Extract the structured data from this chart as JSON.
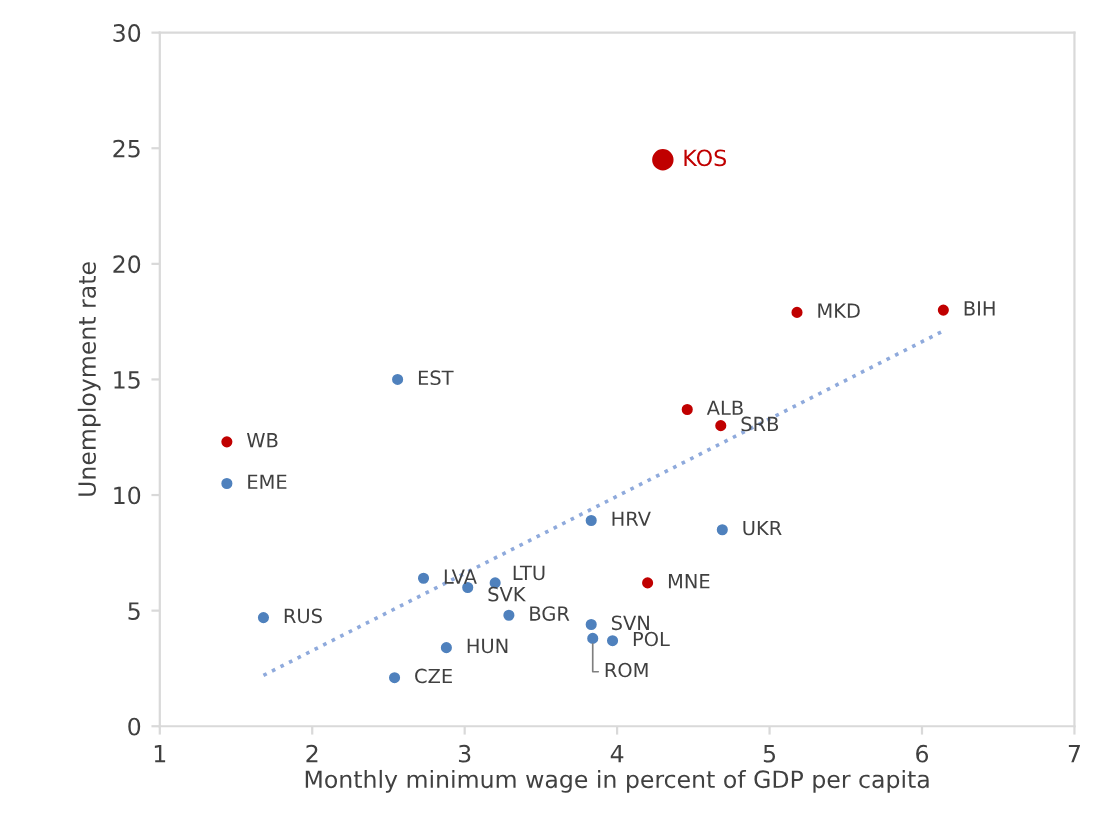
{
  "chart_data": {
    "type": "scatter",
    "xlabel": "Monthly minimum wage in percent of GDP per capita",
    "ylabel": "Unemployment rate",
    "xlim": [
      1,
      7
    ],
    "ylim": [
      0,
      30
    ],
    "xticks": [
      1,
      2,
      3,
      4,
      5,
      6,
      7
    ],
    "yticks": [
      0,
      5,
      10,
      15,
      20,
      25,
      30
    ],
    "grid": false,
    "legend": false,
    "marker": "circle",
    "series": [
      {
        "color": "#4f81bd",
        "x": [
          2.56,
          1.44,
          3.83,
          4.69,
          2.73,
          3.02,
          3.2,
          3.29,
          3.83,
          3.84,
          3.97,
          2.88,
          2.54,
          1.68
        ],
        "values": [
          15.0,
          10.5,
          8.9,
          8.5,
          6.4,
          6.0,
          6.2,
          4.8,
          4.4,
          3.8,
          3.7,
          3.4,
          2.1,
          4.7
        ]
      },
      {
        "color": "#c00000",
        "x": [
          1.44,
          5.18,
          6.14,
          4.46,
          4.68,
          4.2
        ],
        "values": [
          12.3,
          17.9,
          18.0,
          13.7,
          13.0,
          6.2
        ]
      },
      {
        "color": "#c00000",
        "x": [
          4.3
        ],
        "values": [
          24.5
        ]
      },
      {
        "type": "line",
        "color": "#8faadc",
        "line_style": "dotted",
        "marker": "none",
        "x": [
          1.68,
          6.14
        ],
        "values": [
          2.2,
          17.1
        ]
      }
    ],
    "annotations": [
      {
        "text": "EST",
        "x": 2.56,
        "y": 15.0
      },
      {
        "text": "EME",
        "x": 1.44,
        "y": 10.5
      },
      {
        "text": "HRV",
        "x": 3.83,
        "y": 8.9
      },
      {
        "text": "UKR",
        "x": 4.69,
        "y": 8.5
      },
      {
        "text": "LVA",
        "x": 2.73,
        "y": 6.4
      },
      {
        "text": "SVK",
        "x": 3.02,
        "y": 6.0
      },
      {
        "text": "LTU",
        "x": 3.2,
        "y": 6.2
      },
      {
        "text": "BGR",
        "x": 3.29,
        "y": 4.8
      },
      {
        "text": "SVN",
        "x": 3.83,
        "y": 4.4
      },
      {
        "text": "ROM",
        "x": 3.84,
        "y": 3.8
      },
      {
        "text": "POL",
        "x": 3.97,
        "y": 3.7
      },
      {
        "text": "HUN",
        "x": 2.88,
        "y": 3.4
      },
      {
        "text": "CZE",
        "x": 2.54,
        "y": 2.1
      },
      {
        "text": "RUS",
        "x": 1.68,
        "y": 4.7
      },
      {
        "text": "WB",
        "x": 1.44,
        "y": 12.3
      },
      {
        "text": "MKD",
        "x": 5.18,
        "y": 17.9
      },
      {
        "text": "BIH",
        "x": 6.14,
        "y": 18.0
      },
      {
        "text": "ALB",
        "x": 4.46,
        "y": 13.7
      },
      {
        "text": "SRB",
        "x": 4.68,
        "y": 13.0
      },
      {
        "text": "MNE",
        "x": 4.2,
        "y": 6.2
      },
      {
        "text": "KOS",
        "x": 4.3,
        "y": 24.5
      }
    ]
  }
}
